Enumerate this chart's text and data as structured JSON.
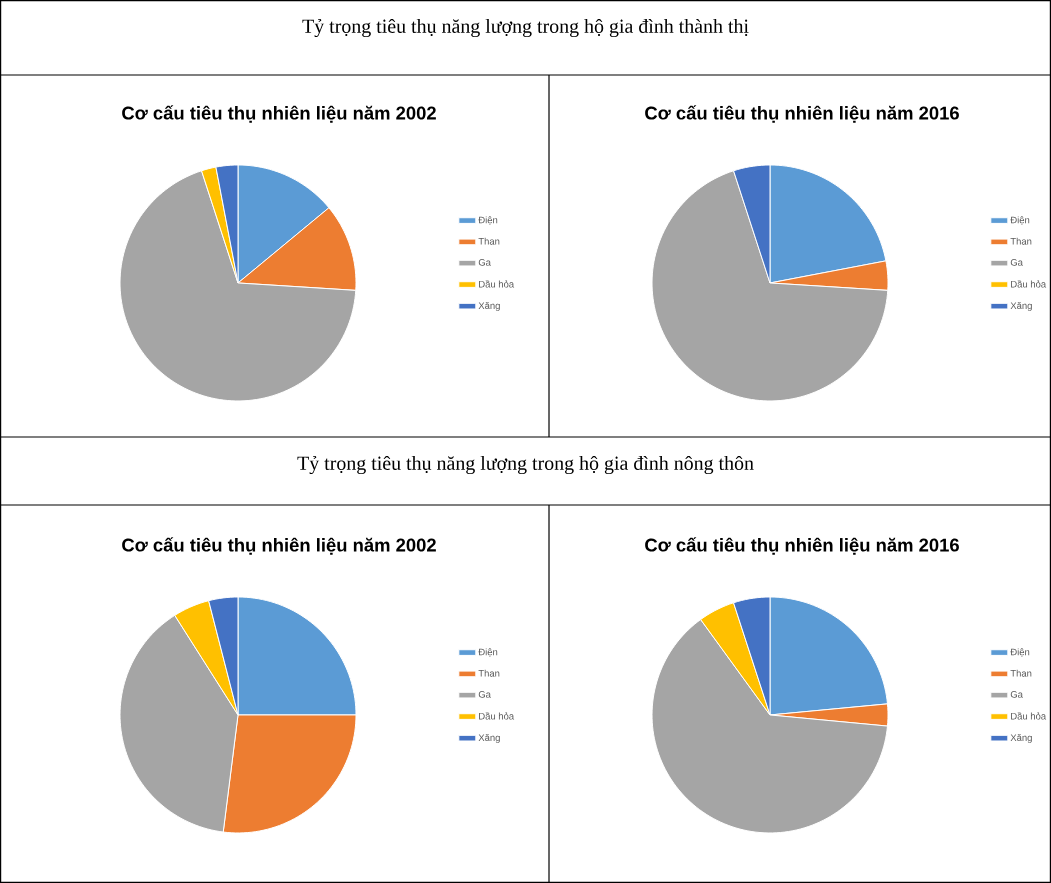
{
  "chart_data": [
    {
      "type": "pie",
      "title": "Cơ cấu tiêu thụ nhiên liệu năm 2002",
      "annotations": [
        "Tỷ trọng tiêu thụ năng lượng trong hộ gia đình thành thị"
      ],
      "categories": [
        "Điện",
        "Than",
        "Ga",
        "Dầu hỏa",
        "Xăng"
      ],
      "values": [
        14,
        12,
        69,
        2,
        3
      ],
      "colors": [
        "#5b9bd5",
        "#ed7d31",
        "#a5a5a5",
        "#ffc000",
        "#4472c4"
      ],
      "legend": "right"
    },
    {
      "type": "pie",
      "title": "Cơ cấu tiêu thụ nhiên liệu năm 2016",
      "categories": [
        "Điện",
        "Than",
        "Ga",
        "Dầu hỏa",
        "Xăng"
      ],
      "values": [
        22,
        4,
        69,
        0,
        5
      ],
      "colors": [
        "#5b9bd5",
        "#ed7d31",
        "#a5a5a5",
        "#ffc000",
        "#4472c4"
      ],
      "legend": "right"
    },
    {
      "type": "pie",
      "title": "Cơ cấu tiêu thụ nhiên liệu năm 2002",
      "annotations": [
        "Tỷ trọng tiêu thụ năng lượng trong hộ gia đình nông thôn"
      ],
      "categories": [
        "Điện",
        "Than",
        "Ga",
        "Dầu hỏa",
        "Xăng"
      ],
      "values": [
        25,
        27,
        39,
        5,
        4
      ],
      "colors": [
        "#5b9bd5",
        "#ed7d31",
        "#a5a5a5",
        "#ffc000",
        "#4472c4"
      ],
      "legend": "right"
    },
    {
      "type": "pie",
      "title": "Cơ cấu tiêu thụ nhiên liệu năm 2016",
      "categories": [
        "Điện",
        "Than",
        "Ga",
        "Dầu hỏa",
        "Xăng"
      ],
      "values": [
        23.5,
        3,
        63.5,
        5,
        5
      ],
      "colors": [
        "#5b9bd5",
        "#ed7d31",
        "#a5a5a5",
        "#ffc000",
        "#4472c4"
      ],
      "legend": "right"
    }
  ]
}
